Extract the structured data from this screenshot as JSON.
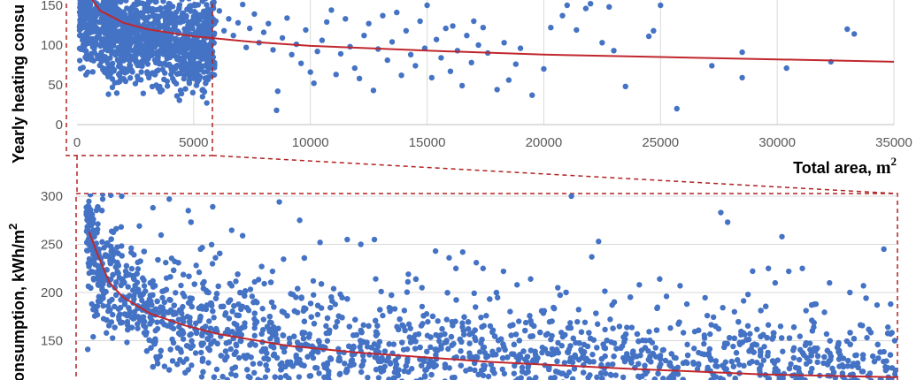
{
  "colors": {
    "points": "#4472C4",
    "trend": "#C0272D",
    "zoom_frame": "#B22222",
    "grid": "#D9D9D9",
    "tick_text": "#595959"
  },
  "chart_data": [
    {
      "type": "scatter",
      "title": "",
      "xlabel": "Total area, ",
      "xlabel_unit": "m",
      "xlabel_unit_exp": "2",
      "ylabel": "Yearly heating consu",
      "xlim": [
        0,
        35000
      ],
      "ylim": [
        0,
        160
      ],
      "x_ticks": [
        "0",
        "5000",
        "10000",
        "15000",
        "20000",
        "25000",
        "30000",
        "35000"
      ],
      "y_ticks": [
        "0",
        "50",
        "100",
        "150"
      ],
      "grid": "vertical",
      "series": [
        {
          "values": [
            [
              5950,
              130
            ],
            [
              6100,
              143
            ],
            [
              6300,
              118
            ],
            [
              6500,
              133
            ],
            [
              6700,
              112
            ],
            [
              6900,
              128
            ],
            [
              7100,
              151
            ],
            [
              7250,
              97
            ],
            [
              7400,
              121
            ],
            [
              7600,
              139
            ],
            [
              7800,
              103
            ],
            [
              8000,
              116
            ],
            [
              8200,
              127
            ],
            [
              8400,
              94
            ],
            [
              8550,
              18
            ],
            [
              8600,
              42
            ],
            [
              8800,
              109
            ],
            [
              9000,
              134
            ],
            [
              9200,
              88
            ],
            [
              9400,
              101
            ],
            [
              9600,
              77
            ],
            [
              9800,
              119
            ],
            [
              10000,
              66
            ],
            [
              10150,
              52
            ],
            [
              10300,
              92
            ],
            [
              10500,
              106
            ],
            [
              10700,
              129
            ],
            [
              10900,
              144
            ],
            [
              11100,
              63
            ],
            [
              11300,
              89
            ],
            [
              11500,
              133
            ],
            [
              11700,
              98
            ],
            [
              11900,
              71
            ],
            [
              12100,
              58
            ],
            [
              12300,
              112
            ],
            [
              12500,
              127
            ],
            [
              12700,
              43
            ],
            [
              12900,
              95
            ],
            [
              13100,
              137
            ],
            [
              13300,
              81
            ],
            [
              13500,
              104
            ],
            [
              13700,
              141
            ],
            [
              13900,
              62
            ],
            [
              14100,
              118
            ],
            [
              14300,
              88
            ],
            [
              14500,
              74
            ],
            [
              14700,
              130
            ],
            [
              14900,
              96
            ],
            [
              15000,
              150
            ],
            [
              15200,
              59
            ],
            [
              15400,
              107
            ],
            [
              15600,
              84
            ],
            [
              15800,
              121
            ],
            [
              16000,
              67
            ],
            [
              16100,
              124
            ],
            [
              16300,
              93
            ],
            [
              16500,
              49
            ],
            [
              16700,
              112
            ],
            [
              16900,
              78
            ],
            [
              17000,
              130
            ],
            [
              17200,
              100
            ],
            [
              17400,
              122
            ],
            [
              17600,
              90
            ],
            [
              18000,
              44
            ],
            [
              18300,
              103
            ],
            [
              18500,
              56
            ],
            [
              18800,
              76
            ],
            [
              19000,
              96
            ],
            [
              19500,
              37
            ],
            [
              20000,
              70
            ],
            [
              20300,
              122
            ],
            [
              20800,
              137
            ],
            [
              21000,
              150
            ],
            [
              21400,
              119
            ],
            [
              21800,
              146
            ],
            [
              22000,
              152
            ],
            [
              22500,
              103
            ],
            [
              22800,
              148
            ],
            [
              23000,
              93
            ],
            [
              23500,
              48
            ],
            [
              24500,
              111
            ],
            [
              24700,
              118
            ],
            [
              25000,
              150
            ],
            [
              25700,
              20
            ],
            [
              27200,
              74
            ],
            [
              28500,
              91
            ],
            [
              28500,
              59
            ],
            [
              30400,
              71
            ],
            [
              32300,
              79
            ],
            [
              33000,
              120
            ],
            [
              33300,
              114
            ]
          ]
        }
      ],
      "trend_line": {
        "x": [
          500,
          1000,
          2000,
          3000,
          5000,
          7500,
          10000,
          15000,
          20000,
          25000,
          30000,
          35000
        ],
        "y": [
          163,
          143,
          128,
          120,
          111,
          104,
          99,
          93,
          88,
          85,
          82,
          79
        ]
      }
    },
    {
      "type": "scatter",
      "title": "",
      "xlabel": "",
      "ylabel": "onsumption, kWh/m",
      "ylabel_exp": "2",
      "xlim": [
        0,
        6000
      ],
      "ylim": [
        110,
        300
      ],
      "y_ticks": [
        "150",
        "200",
        "250",
        "300"
      ],
      "grid": "horizontal",
      "series": [
        {
          "values": [
            [
              60,
              286
            ],
            [
              110,
              240
            ],
            [
              150,
              297
            ],
            [
              210,
              301
            ],
            [
              290,
              300
            ],
            [
              360,
              246
            ],
            [
              420,
              269
            ],
            [
              520,
              288
            ],
            [
              640,
              297
            ],
            [
              780,
              285
            ],
            [
              870,
              245
            ],
            [
              960,
              289
            ],
            [
              1180,
              259
            ],
            [
              1320,
              227
            ],
            [
              1450,
              294
            ],
            [
              1600,
              275
            ],
            [
              1750,
              252
            ],
            [
              1950,
              255
            ],
            [
              2050,
              250
            ],
            [
              2150,
              255
            ],
            [
              2600,
              243
            ],
            [
              2700,
              236
            ],
            [
              2750,
              225
            ],
            [
              2800,
              242
            ],
            [
              2900,
              231
            ],
            [
              2950,
              225
            ],
            [
              3100,
              222
            ],
            [
              3200,
              208
            ],
            [
              3300,
              214
            ],
            [
              3600,
              300
            ],
            [
              3750,
              237
            ],
            [
              3800,
              253
            ],
            [
              4100,
              208
            ],
            [
              4300,
              196
            ],
            [
              4400,
              207
            ],
            [
              4700,
              283
            ],
            [
              4750,
              273
            ],
            [
              5050,
              225
            ],
            [
              5150,
              258
            ],
            [
              5200,
              222
            ],
            [
              5300,
              225
            ],
            [
              5500,
              210
            ],
            [
              5750,
              207
            ],
            [
              5900,
              245
            ],
            [
              5950,
              188
            ],
            [
              5980,
              150
            ],
            [
              5930,
              164
            ],
            [
              5850,
              187
            ],
            [
              5400,
              188
            ],
            [
              5650,
              200
            ],
            [
              5100,
              210
            ],
            [
              4900,
              198
            ],
            [
              4800,
              180
            ],
            [
              4600,
              176
            ],
            [
              4450,
              188
            ],
            [
              4250,
              214
            ],
            [
              3900,
              187
            ],
            [
              3700,
              169
            ],
            [
              3500,
              205
            ],
            [
              3400,
              181
            ],
            [
              2500,
              205
            ],
            [
              2400,
              219
            ],
            [
              2300,
              183
            ],
            [
              2200,
              201
            ],
            [
              1850,
              204
            ],
            [
              1700,
              212
            ],
            [
              1550,
              198
            ],
            [
              1400,
              222
            ],
            [
              1250,
              196
            ],
            [
              1100,
              207
            ],
            [
              980,
              236
            ],
            [
              860,
              221
            ],
            [
              740,
              199
            ],
            [
              620,
              215
            ],
            [
              500,
              197
            ],
            [
              380,
              214
            ],
            [
              270,
              172
            ],
            [
              190,
              186
            ],
            [
              80,
              154
            ],
            [
              40,
              141
            ]
          ]
        }
      ],
      "trend_line": {
        "x": [
          50,
          100,
          200,
          300,
          500,
          750,
          1000,
          1500,
          2000,
          3000,
          4000,
          5000,
          6000
        ],
        "y": [
          263,
          244,
          210,
          195,
          178,
          166,
          157,
          145,
          138,
          128,
          121,
          115,
          112
        ]
      }
    }
  ]
}
